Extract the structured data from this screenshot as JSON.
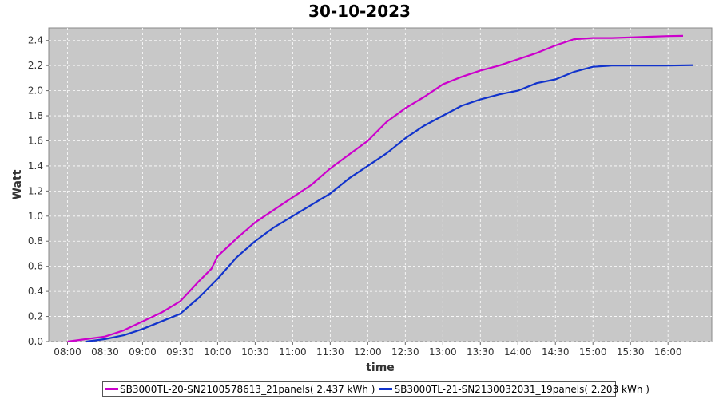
{
  "chart_data": {
    "type": "line",
    "title": "30-10-2023",
    "xlabel": "time",
    "ylabel": "Watt",
    "ylim": [
      0,
      2.5
    ],
    "yticks": [
      0.0,
      0.2,
      0.4,
      0.6,
      0.8,
      1.0,
      1.2,
      1.4,
      1.6,
      1.8,
      2.0,
      2.2,
      2.4
    ],
    "ytick_labels": [
      "0.0",
      "0.2",
      "0.4",
      "0.6",
      "0.8",
      "1.0",
      "1.2",
      "1.4",
      "1.6",
      "1.8",
      "2.0",
      "2.2",
      "2.4"
    ],
    "xlim": [
      "07:45",
      "16:35"
    ],
    "xticks": [
      "08:00",
      "08:30",
      "09:00",
      "09:30",
      "10:00",
      "10:30",
      "11:00",
      "11:30",
      "12:00",
      "12:30",
      "13:00",
      "13:30",
      "14:00",
      "14:30",
      "15:00",
      "15:30",
      "16:00"
    ],
    "grid": true,
    "legend_position": "bottom",
    "series": [
      {
        "name": "SB3000TL-20-SN2100578613_21panels( 2.437 kWh )",
        "color": "#cc00cc",
        "x": [
          "08:00",
          "08:15",
          "08:30",
          "08:45",
          "09:00",
          "09:15",
          "09:30",
          "09:45",
          "09:55",
          "10:00",
          "10:15",
          "10:30",
          "10:45",
          "11:00",
          "11:15",
          "11:30",
          "11:45",
          "12:00",
          "12:15",
          "12:30",
          "12:45",
          "13:00",
          "13:15",
          "13:30",
          "13:45",
          "14:00",
          "14:15",
          "14:30",
          "14:45",
          "15:00",
          "15:15",
          "15:30",
          "15:45",
          "16:00",
          "16:12"
        ],
        "y": [
          0.0,
          0.02,
          0.04,
          0.09,
          0.16,
          0.23,
          0.32,
          0.48,
          0.58,
          0.68,
          0.82,
          0.95,
          1.05,
          1.15,
          1.25,
          1.38,
          1.49,
          1.6,
          1.75,
          1.86,
          1.95,
          2.05,
          2.11,
          2.16,
          2.2,
          2.25,
          2.3,
          2.36,
          2.41,
          2.42,
          2.42,
          2.425,
          2.43,
          2.435,
          2.437
        ]
      },
      {
        "name": "SB3000TL-21-SN2130032031_19panels( 2.203 kWh )",
        "color": "#1133cc",
        "x": [
          "08:15",
          "08:30",
          "08:45",
          "09:00",
          "09:15",
          "09:30",
          "09:45",
          "10:00",
          "10:15",
          "10:30",
          "10:45",
          "11:00",
          "11:15",
          "11:30",
          "11:45",
          "12:00",
          "12:15",
          "12:30",
          "12:45",
          "13:00",
          "13:15",
          "13:30",
          "13:45",
          "14:00",
          "14:15",
          "14:30",
          "14:45",
          "15:00",
          "15:15",
          "15:30",
          "15:45",
          "16:00",
          "16:20"
        ],
        "y": [
          0.0,
          0.02,
          0.05,
          0.1,
          0.16,
          0.22,
          0.35,
          0.5,
          0.67,
          0.8,
          0.91,
          1.0,
          1.09,
          1.18,
          1.3,
          1.4,
          1.5,
          1.62,
          1.72,
          1.8,
          1.88,
          1.93,
          1.97,
          2.0,
          2.06,
          2.09,
          2.15,
          2.19,
          2.2,
          2.2,
          2.2,
          2.2,
          2.203
        ]
      }
    ]
  }
}
